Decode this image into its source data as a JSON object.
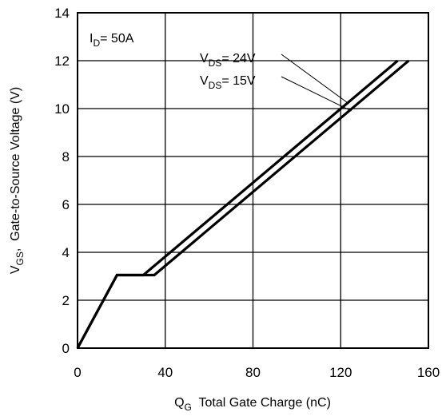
{
  "chart_data": {
    "type": "line",
    "xlabel": {
      "main": "Q",
      "sub": "G",
      "rest": "  Total Gate Charge (nC)"
    },
    "ylabel": {
      "main": "V",
      "sub": "GS",
      "rest": ",  Gate-to-Source Voltage (V)"
    },
    "xlim": [
      0,
      160
    ],
    "ylim": [
      0,
      14
    ],
    "x_ticks": [
      0,
      40,
      80,
      120,
      160
    ],
    "y_ticks": [
      0,
      2,
      4,
      6,
      8,
      10,
      12,
      14
    ],
    "grid": true,
    "annotation": {
      "main": "I",
      "sub": "D",
      "rest": "= 50A"
    },
    "series": [
      {
        "name": {
          "main": "V",
          "sub": "DS",
          "rest": "= 24V"
        },
        "x": [
          0,
          18,
          30,
          146
        ],
        "y": [
          0,
          3.05,
          3.05,
          12
        ]
      },
      {
        "name": {
          "main": "V",
          "sub": "DS",
          "rest": "= 15V"
        },
        "x": [
          0,
          18,
          35,
          151
        ],
        "y": [
          0,
          3.05,
          3.05,
          12
        ]
      }
    ],
    "series_color": "#000000"
  }
}
